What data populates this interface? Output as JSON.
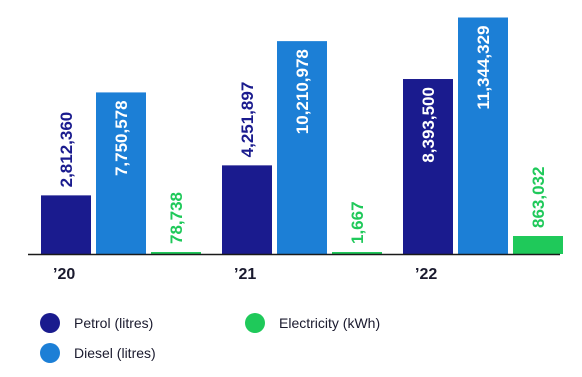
{
  "chart_data": {
    "type": "bar",
    "categories": [
      "’20",
      "’21",
      "’22"
    ],
    "series": [
      {
        "name": "Petrol (litres)",
        "color": "#1a1b8e",
        "values": [
          2812360,
          4251897,
          8393500
        ],
        "labels": [
          "2,812,360",
          "4,251,897",
          "8,393,500"
        ]
      },
      {
        "name": "Diesel (litres)",
        "color": "#1c7fd6",
        "values": [
          7750578,
          10210978,
          11344329
        ],
        "labels": [
          "7,750,578",
          "10,210,978",
          "11,344,329"
        ]
      },
      {
        "name": "Electricity (kWh)",
        "color": "#1fc95a",
        "values": [
          78738,
          1667,
          863032
        ],
        "labels": [
          "78,738",
          "1,667",
          "863,032"
        ]
      }
    ],
    "ylim": [
      0,
      11800000
    ],
    "grid": false,
    "legend_position": "bottom"
  }
}
